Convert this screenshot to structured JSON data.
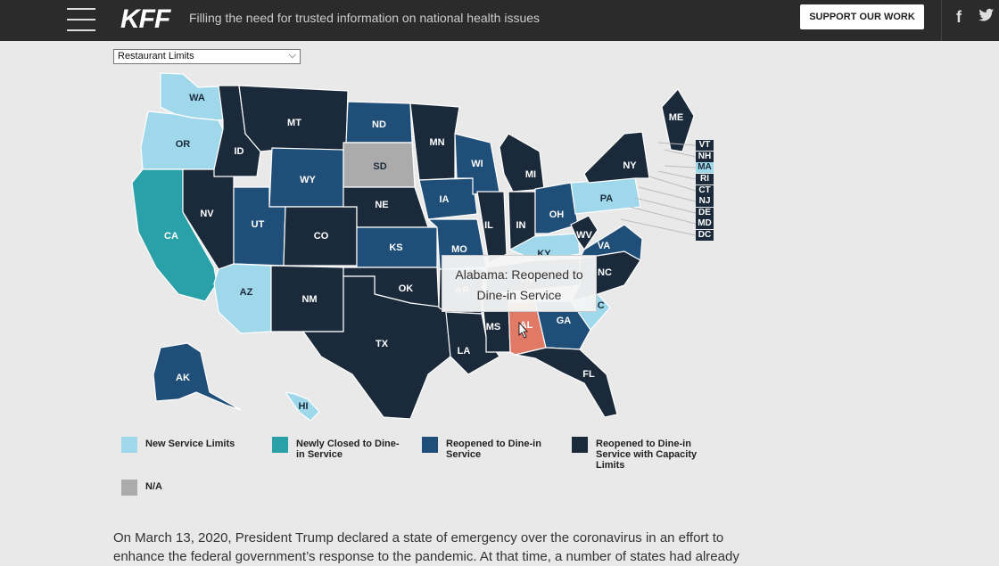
{
  "header": {
    "logo": "KFF",
    "tagline": "Filling the need for trusted information on national health issues",
    "support_label": "SUPPORT OUR WORK",
    "facebook_glyph": "f",
    "icons": [
      "menu-icon",
      "facebook-icon",
      "twitter-icon"
    ]
  },
  "selector": {
    "value": "Restaurant Limits"
  },
  "colors": {
    "new_limits": "#9fd8ea",
    "newly_closed": "#2aa0a8",
    "reopened": "#1f4e79",
    "reopened_capacity": "#1b2a3a",
    "na": "#ababab",
    "highlight": "#e07a66"
  },
  "legend": [
    {
      "key": "new_limits",
      "label": "New Service Limits"
    },
    {
      "key": "newly_closed",
      "label": "Newly Closed to Dine-in Service"
    },
    {
      "key": "reopened",
      "label": "Reopened to Dine-in Service"
    },
    {
      "key": "reopened_capacity",
      "label": "Reopened to Dine-in Service with Capacity Limits"
    },
    {
      "key": "na",
      "label": "N/A"
    }
  ],
  "states": {
    "WA": "new_limits",
    "OR": "new_limits",
    "CA": "newly_closed",
    "AZ": "new_limits",
    "ID": "reopened_capacity",
    "NV": "reopened_capacity",
    "MT": "reopened_capacity",
    "WY": "reopened",
    "UT": "reopened",
    "CO": "reopened_capacity",
    "NM": "reopened_capacity",
    "ND": "reopened",
    "SD": "na",
    "NE": "reopened_capacity",
    "KS": "reopened",
    "OK": "reopened_capacity",
    "TX": "reopened_capacity",
    "MN": "reopened_capacity",
    "IA": "reopened",
    "MO": "reopened",
    "AR": "reopened_capacity",
    "LA": "reopened_capacity",
    "WI": "reopened",
    "IL": "reopened_capacity",
    "MS": "reopened_capacity",
    "MI": "reopened_capacity",
    "IN": "reopened_capacity",
    "KY": "new_limits",
    "TN": "reopened_capacity",
    "AL": "reopened",
    "OH": "reopened",
    "WV": "reopened_capacity",
    "VA": "reopened",
    "NC": "reopened_capacity",
    "SC": "new_limits",
    "GA": "reopened",
    "FL": "reopened_capacity",
    "PA": "new_limits",
    "NY": "reopened_capacity",
    "ME": "reopened_capacity",
    "AK": "reopened",
    "HI": "new_limits",
    "VT": "reopened_capacity",
    "NH": "reopened_capacity",
    "MA": "new_limits",
    "RI": "reopened_capacity",
    "CT": "reopened_capacity",
    "NJ": "reopened_capacity",
    "DE": "reopened_capacity",
    "MD": "reopened_capacity",
    "DC": "reopened_capacity"
  },
  "highlighted_state": "AL",
  "small_states": [
    "VT",
    "NH",
    "MA",
    "RI",
    "CT",
    "NJ",
    "DE",
    "MD",
    "DC"
  ],
  "tooltip": {
    "line1": "Alabama: Reopened to",
    "line2": "Dine-in Service"
  },
  "paragraph": "On March 13, 2020, President Trump declared a state of emergency over the coronavirus in an effort to enhance the federal government’s response to the pandemic. At that time, a number of states had already"
}
